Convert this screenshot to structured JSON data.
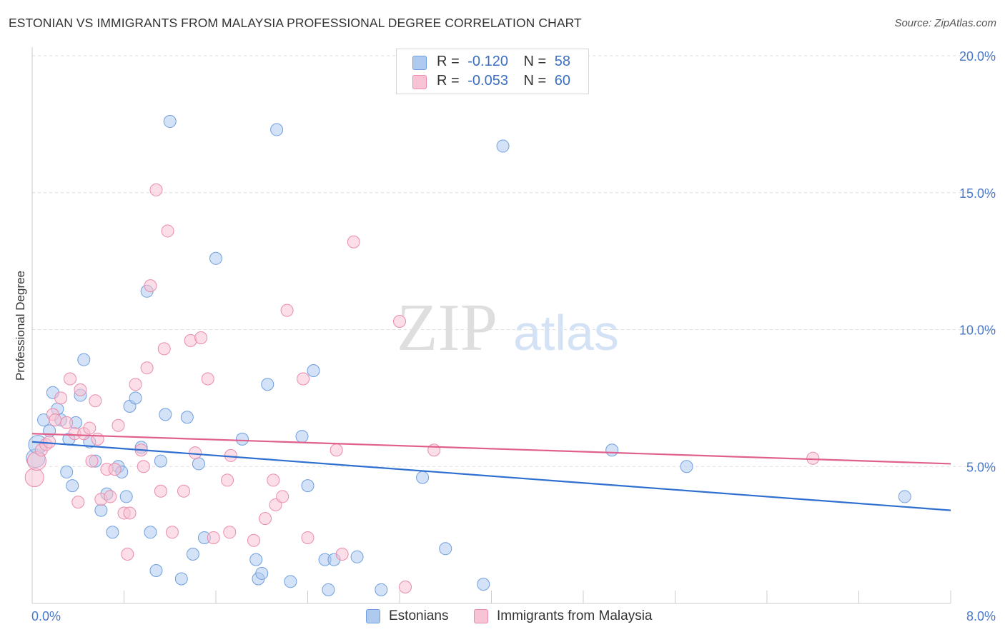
{
  "header": {
    "title": "ESTONIAN VS IMMIGRANTS FROM MALAYSIA PROFESSIONAL DEGREE CORRELATION CHART",
    "source": "Source: ZipAtlas.com"
  },
  "watermark": {
    "zip": "ZIP",
    "atlas": "atlas"
  },
  "legend": {
    "rows": [
      {
        "r_label": "R =",
        "r_value": "-0.120",
        "n_label": "N =",
        "n_value": "58",
        "color": "#aecbef",
        "stroke": "#6f9fe0"
      },
      {
        "r_label": "R =",
        "r_value": "-0.053",
        "n_label": "N =",
        "n_value": "60",
        "color": "#f8c3d4",
        "stroke": "#ea8cab"
      }
    ]
  },
  "bottom_legend": [
    {
      "label": "Estonians",
      "color": "#aecbef",
      "stroke": "#6f9fe0"
    },
    {
      "label": "Immigrants from Malaysia",
      "color": "#f8c3d4",
      "stroke": "#ea8cab"
    }
  ],
  "chart_data": {
    "type": "scatter",
    "title": "ESTONIAN VS IMMIGRANTS FROM MALAYSIA PROFESSIONAL DEGREE CORRELATION CHART",
    "ylabel": "Professional Degree",
    "xlabel": "",
    "xlim": [
      0,
      8
    ],
    "ylim": [
      0,
      20
    ],
    "x_ticks": [
      "0.0%",
      "8.0%"
    ],
    "y_ticks": [
      {
        "value": 5,
        "label": "5.0%"
      },
      {
        "value": 10,
        "label": "10.0%"
      },
      {
        "value": 15,
        "label": "15.0%"
      },
      {
        "value": 20,
        "label": "20.0%"
      }
    ],
    "grid": "horizontal dashed",
    "series": [
      {
        "name": "Estonians",
        "color": "#6f9fe0",
        "fill": "#aecbef",
        "line_color": "#2f6fd0",
        "trend": {
          "x": [
            0,
            8
          ],
          "y": [
            5.9,
            3.4
          ]
        },
        "points": [
          [
            0.03,
            5.3
          ],
          [
            0.05,
            5.8
          ],
          [
            0.1,
            6.7
          ],
          [
            0.15,
            6.3
          ],
          [
            0.18,
            7.7
          ],
          [
            0.22,
            7.1
          ],
          [
            0.25,
            6.7
          ],
          [
            0.3,
            4.8
          ],
          [
            0.32,
            6.0
          ],
          [
            0.35,
            4.3
          ],
          [
            0.38,
            6.6
          ],
          [
            0.42,
            7.6
          ],
          [
            0.45,
            8.9
          ],
          [
            0.5,
            5.9
          ],
          [
            0.55,
            5.2
          ],
          [
            0.6,
            3.4
          ],
          [
            0.65,
            4.0
          ],
          [
            0.7,
            2.6
          ],
          [
            0.75,
            5.0
          ],
          [
            0.78,
            4.8
          ],
          [
            0.82,
            3.9
          ],
          [
            0.85,
            7.2
          ],
          [
            0.9,
            7.5
          ],
          [
            0.95,
            5.7
          ],
          [
            1.0,
            11.4
          ],
          [
            1.03,
            2.6
          ],
          [
            1.08,
            1.2
          ],
          [
            1.12,
            5.2
          ],
          [
            1.16,
            6.9
          ],
          [
            1.2,
            17.6
          ],
          [
            1.3,
            0.9
          ],
          [
            1.35,
            6.8
          ],
          [
            1.4,
            1.8
          ],
          [
            1.45,
            5.1
          ],
          [
            1.5,
            2.4
          ],
          [
            1.6,
            12.6
          ],
          [
            1.83,
            6.0
          ],
          [
            1.95,
            1.6
          ],
          [
            1.97,
            0.9
          ],
          [
            2.0,
            1.1
          ],
          [
            2.05,
            8.0
          ],
          [
            2.13,
            17.3
          ],
          [
            2.25,
            0.8
          ],
          [
            2.35,
            6.1
          ],
          [
            2.4,
            4.3
          ],
          [
            2.45,
            8.5
          ],
          [
            2.55,
            1.6
          ],
          [
            2.58,
            0.5
          ],
          [
            2.63,
            1.6
          ],
          [
            2.83,
            1.7
          ],
          [
            3.04,
            0.5
          ],
          [
            3.4,
            4.6
          ],
          [
            3.6,
            2.0
          ],
          [
            3.93,
            0.7
          ],
          [
            4.1,
            16.7
          ],
          [
            5.05,
            5.6
          ],
          [
            5.7,
            5.0
          ],
          [
            7.6,
            3.9
          ]
        ]
      },
      {
        "name": "Immigrants from Malaysia",
        "color": "#ea8cab",
        "fill": "#f8c3d4",
        "line_color": "#e0608c",
        "trend": {
          "x": [
            0,
            8
          ],
          "y": [
            6.2,
            5.1
          ]
        },
        "points": [
          [
            0.02,
            4.6
          ],
          [
            0.04,
            5.2
          ],
          [
            0.08,
            5.6
          ],
          [
            0.12,
            5.8
          ],
          [
            0.15,
            5.9
          ],
          [
            0.18,
            6.9
          ],
          [
            0.2,
            6.7
          ],
          [
            0.25,
            7.5
          ],
          [
            0.3,
            6.6
          ],
          [
            0.33,
            8.2
          ],
          [
            0.37,
            6.2
          ],
          [
            0.4,
            3.7
          ],
          [
            0.42,
            7.8
          ],
          [
            0.45,
            6.2
          ],
          [
            0.5,
            6.4
          ],
          [
            0.52,
            5.2
          ],
          [
            0.55,
            7.4
          ],
          [
            0.57,
            6.0
          ],
          [
            0.6,
            3.8
          ],
          [
            0.65,
            4.9
          ],
          [
            0.68,
            3.9
          ],
          [
            0.72,
            4.9
          ],
          [
            0.75,
            6.5
          ],
          [
            0.8,
            3.3
          ],
          [
            0.83,
            1.8
          ],
          [
            0.85,
            3.3
          ],
          [
            0.9,
            8.0
          ],
          [
            0.95,
            5.6
          ],
          [
            0.97,
            5.0
          ],
          [
            1.0,
            8.6
          ],
          [
            1.03,
            11.6
          ],
          [
            1.08,
            15.1
          ],
          [
            1.12,
            4.1
          ],
          [
            1.15,
            9.3
          ],
          [
            1.18,
            13.6
          ],
          [
            1.22,
            2.6
          ],
          [
            1.32,
            4.1
          ],
          [
            1.38,
            9.6
          ],
          [
            1.42,
            5.5
          ],
          [
            1.47,
            9.7
          ],
          [
            1.53,
            8.2
          ],
          [
            1.58,
            2.4
          ],
          [
            1.7,
            4.5
          ],
          [
            1.72,
            2.6
          ],
          [
            1.73,
            5.4
          ],
          [
            1.93,
            2.3
          ],
          [
            2.03,
            3.1
          ],
          [
            2.1,
            4.5
          ],
          [
            2.12,
            3.6
          ],
          [
            2.18,
            3.9
          ],
          [
            2.22,
            10.7
          ],
          [
            2.36,
            8.2
          ],
          [
            2.4,
            2.4
          ],
          [
            2.65,
            5.6
          ],
          [
            2.7,
            1.8
          ],
          [
            2.8,
            13.2
          ],
          [
            3.2,
            10.3
          ],
          [
            3.25,
            0.6
          ],
          [
            3.5,
            5.6
          ],
          [
            6.8,
            5.3
          ]
        ]
      }
    ]
  }
}
